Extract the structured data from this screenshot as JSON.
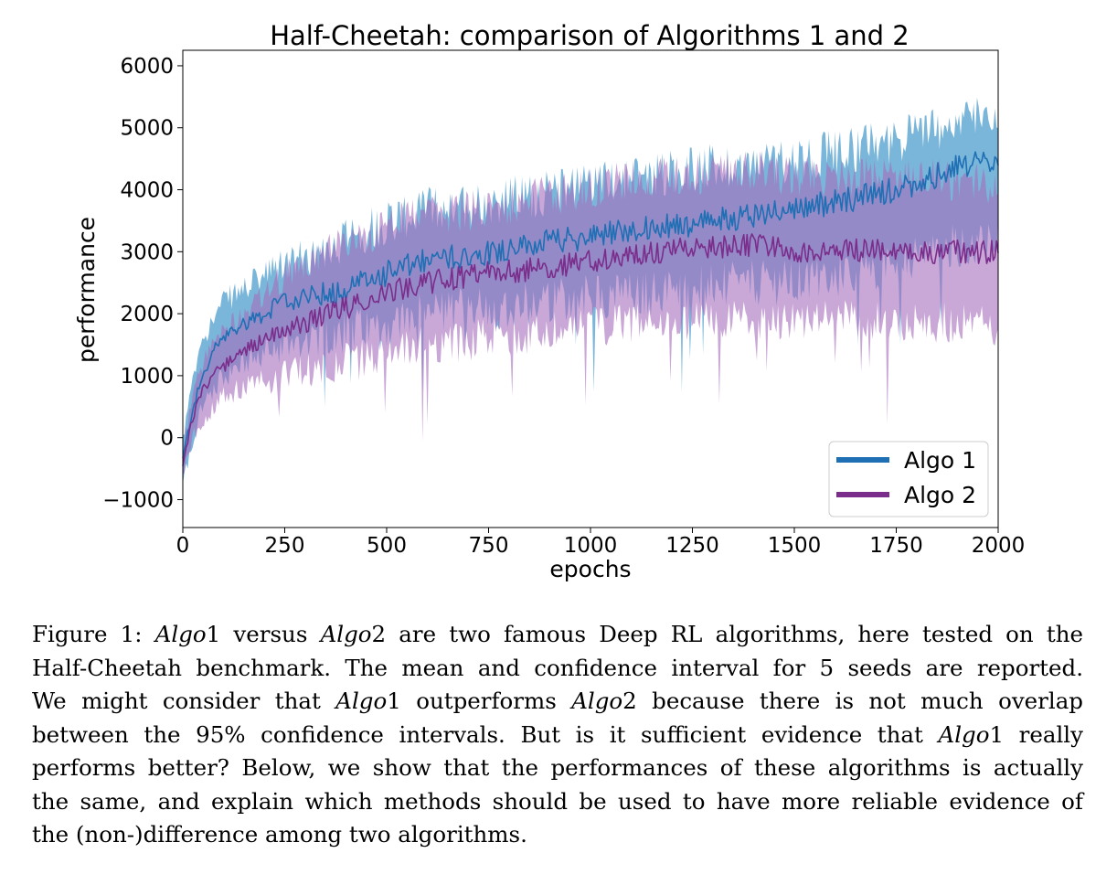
{
  "chart_data": {
    "type": "line",
    "title": "Half-Cheetah: comparison of Algorithms 1 and 2",
    "xlabel": "epochs",
    "ylabel": "performance",
    "xlim": [
      0,
      2000
    ],
    "ylim": [
      -1450,
      6250
    ],
    "xticks": [
      0,
      250,
      500,
      750,
      1000,
      1250,
      1500,
      1750,
      2000
    ],
    "xtick_labels": [
      "0",
      "250",
      "500",
      "750",
      "1000",
      "1250",
      "1500",
      "1750",
      "2000"
    ],
    "yticks": [
      -1000,
      0,
      1000,
      2000,
      3000,
      4000,
      5000,
      6000
    ],
    "ytick_labels": [
      "−1000",
      "0",
      "1000",
      "2000",
      "3000",
      "4000",
      "5000",
      "6000"
    ],
    "legend_position": "bottom-right",
    "grid": false,
    "series": [
      {
        "name": "Algo 1",
        "color": "#1f6fb4",
        "band_color": "#6baed6",
        "x": [
          0,
          25,
          50,
          75,
          100,
          150,
          200,
          250,
          300,
          400,
          500,
          600,
          750,
          900,
          1000,
          1100,
          1250,
          1400,
          1500,
          1600,
          1750,
          1900,
          2000
        ],
        "mean": [
          -350,
          500,
          1000,
          1400,
          1600,
          1850,
          2000,
          2200,
          2250,
          2400,
          2650,
          2850,
          3000,
          3150,
          3250,
          3350,
          3450,
          3600,
          3700,
          3800,
          4000,
          4350,
          4500
        ],
        "lower": [
          -700,
          -100,
          600,
          800,
          1000,
          1200,
          1350,
          1500,
          1600,
          1700,
          1800,
          2000,
          2100,
          2200,
          2300,
          2300,
          2400,
          2500,
          2500,
          2600,
          2800,
          3100,
          3300
        ],
        "upper": [
          0,
          900,
          1600,
          1900,
          2200,
          2400,
          2600,
          2800,
          2900,
          3200,
          3500,
          3700,
          3800,
          3950,
          4100,
          4200,
          4350,
          4400,
          4500,
          4600,
          4800,
          5100,
          5300
        ]
      },
      {
        "name": "Algo 2",
        "color": "#7b2d8b",
        "band_color": "#a56cbd",
        "x": [
          0,
          25,
          50,
          75,
          100,
          150,
          200,
          250,
          300,
          400,
          500,
          600,
          750,
          900,
          1000,
          1100,
          1250,
          1400,
          1500,
          1600,
          1750,
          1900,
          2000
        ],
        "mean": [
          -450,
          350,
          800,
          1000,
          1150,
          1400,
          1600,
          1750,
          1850,
          2100,
          2350,
          2500,
          2650,
          2750,
          2850,
          2950,
          3050,
          3100,
          3000,
          3050,
          3000,
          3000,
          3000
        ],
        "lower": [
          -650,
          0,
          300,
          500,
          650,
          800,
          900,
          1000,
          1100,
          1200,
          1350,
          1500,
          1600,
          1700,
          1800,
          1850,
          1900,
          1900,
          1850,
          1900,
          1900,
          1850,
          1800
        ],
        "upper": [
          -200,
          700,
          1200,
          1500,
          1700,
          2000,
          2300,
          2600,
          2800,
          3100,
          3400,
          3600,
          3700,
          3900,
          4050,
          4150,
          4250,
          4300,
          4200,
          4200,
          4200,
          4150,
          4100
        ]
      }
    ]
  },
  "caption": {
    "label": "Figure 1:",
    "lines": [
      [
        {
          "t": "Figure 1:  ",
          "i": false
        },
        {
          "t": "Algo",
          "i": true
        },
        {
          "t": "1 versus ",
          "i": false
        },
        {
          "t": "Algo",
          "i": true
        },
        {
          "t": "2 are two famous Deep RL algorithms, here tested on the",
          "i": false
        }
      ],
      [
        {
          "t": "Half-Cheetah benchmark. The mean and confidence interval for 5 seeds are reported.",
          "i": false
        }
      ],
      [
        {
          "t": "We might consider that ",
          "i": false
        },
        {
          "t": "Algo",
          "i": true
        },
        {
          "t": "1 outperforms ",
          "i": false
        },
        {
          "t": "Algo",
          "i": true
        },
        {
          "t": "2 because there is not much overlap",
          "i": false
        }
      ],
      [
        {
          "t": "between the 95% confidence intervals. But is it sufficient evidence that ",
          "i": false
        },
        {
          "t": "Algo",
          "i": true
        },
        {
          "t": "1 really",
          "i": false
        }
      ],
      [
        {
          "t": "performs better? Below, we show that the performances of these algorithms is actually",
          "i": false
        }
      ],
      [
        {
          "t": "the same, and explain which methods should be used to have more reliable evidence of",
          "i": false
        }
      ],
      [
        {
          "t": "the (non-)difference among two algorithms.",
          "i": false
        }
      ]
    ]
  }
}
